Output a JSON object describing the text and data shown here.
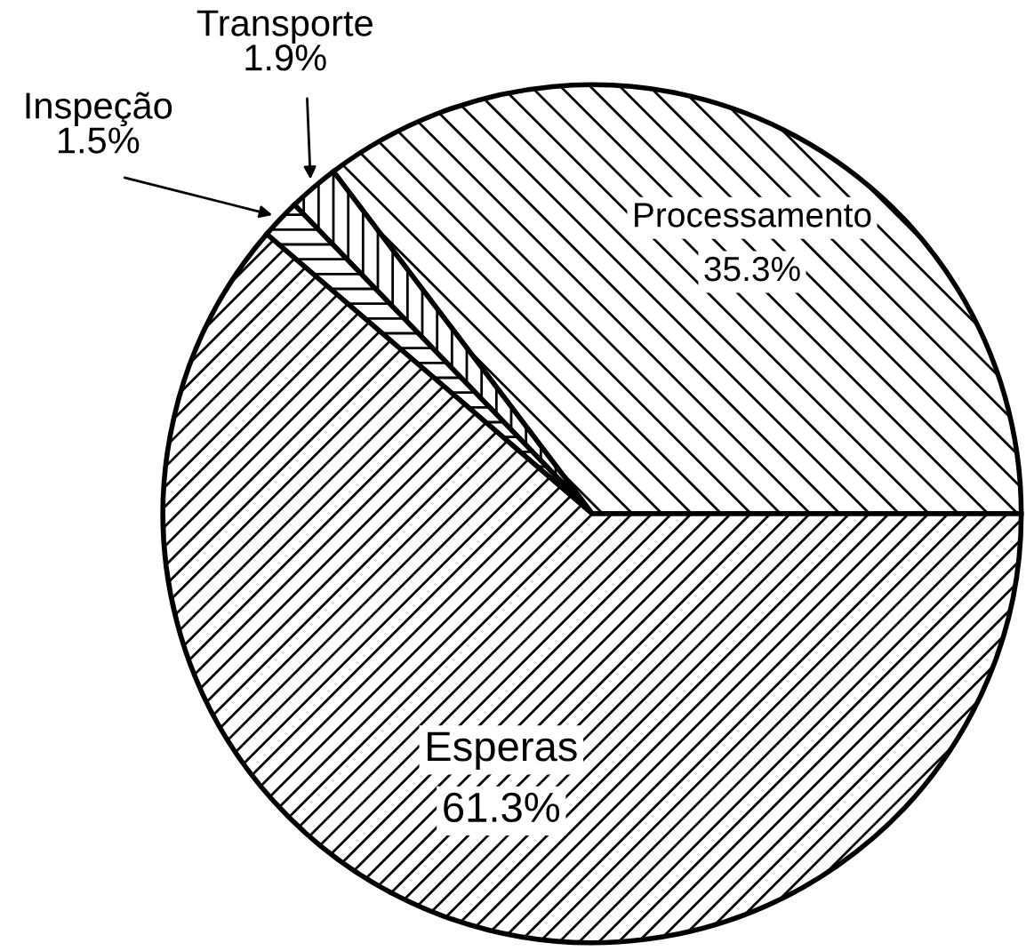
{
  "chart_data": {
    "type": "pie",
    "categories": [
      "Processamento",
      "Transporte",
      "Inspeção",
      "Esperas"
    ],
    "values": [
      35.3,
      1.9,
      1.5,
      61.3
    ],
    "colors": [
      "#000000",
      "#000000",
      "#000000",
      "#000000"
    ],
    "value_labels": [
      "35.3%",
      "1.9%",
      "1.5%",
      "61.3%"
    ],
    "legend": false
  }
}
